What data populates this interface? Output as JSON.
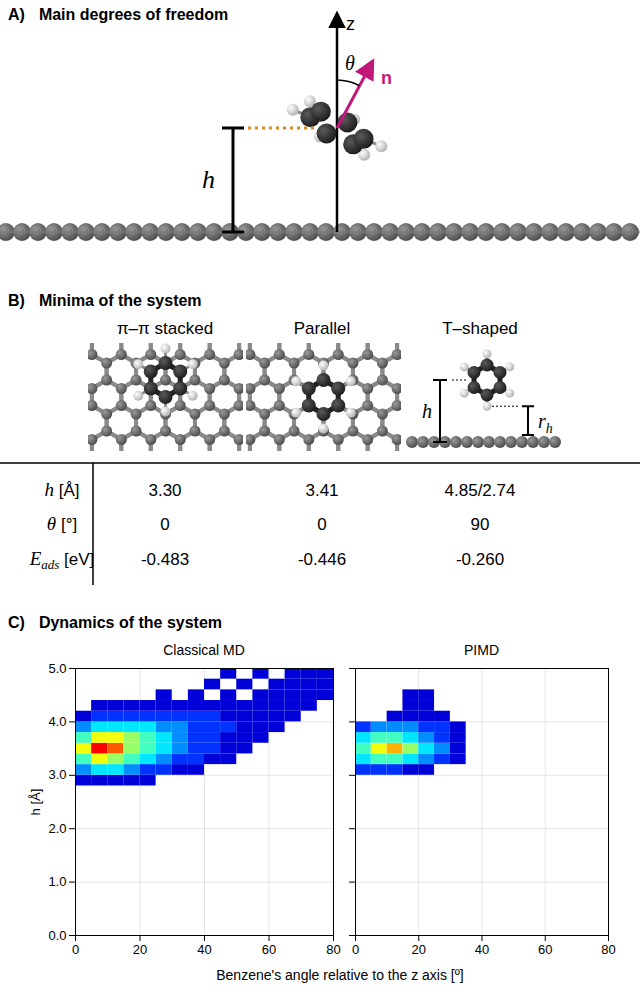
{
  "panels": {
    "A": {
      "letter": "A)",
      "title": "Main degrees of freedom",
      "labels": {
        "axis": "z",
        "angle": "θ",
        "normal": "n",
        "height": "h"
      }
    },
    "B": {
      "letter": "B)",
      "title": "Minima of the system",
      "columns": [
        "π–π stacked",
        "Parallel",
        "T–shaped"
      ],
      "diagram_labels": {
        "height": "h",
        "distance": "r",
        "distance_sub": "h"
      },
      "rows": [
        {
          "symbol": "h",
          "unit": "[Å]",
          "values": [
            "3.30",
            "3.41",
            "4.85/2.74"
          ]
        },
        {
          "symbol": "θ",
          "unit": "[°]",
          "values": [
            "0",
            "0",
            "90"
          ]
        },
        {
          "symbol": "E",
          "sub": "ads",
          "unit": "[eV]",
          "values": [
            "-0.483",
            "-0.446",
            "-0.260"
          ]
        }
      ]
    },
    "C": {
      "letter": "C)",
      "title": "Dynamics of the system",
      "xlabel": "Benzene's angle relative to the z axis [º]"
    }
  },
  "chart_data": [
    {
      "type": "heatmap",
      "title": "Classical MD",
      "ylabel": "h [Å]",
      "xlim": [
        0,
        80
      ],
      "xticks": [
        0,
        20,
        40,
        60,
        80
      ],
      "ylim": [
        0,
        5
      ],
      "yticks": [
        0,
        1,
        2,
        3,
        4,
        5
      ],
      "grid": true,
      "bin_size": [
        5,
        0.2
      ],
      "zlim": [
        0,
        10
      ],
      "cells": [
        [
          0,
          2.8,
          1
        ],
        [
          5,
          2.8,
          1
        ],
        [
          10,
          2.8,
          1
        ],
        [
          15,
          2.8,
          1
        ],
        [
          20,
          2.8,
          1
        ],
        [
          0,
          3.0,
          3
        ],
        [
          5,
          3.0,
          4
        ],
        [
          10,
          3.0,
          4
        ],
        [
          15,
          3.0,
          3
        ],
        [
          20,
          3.0,
          2
        ],
        [
          25,
          3.0,
          2
        ],
        [
          30,
          3.0,
          1
        ],
        [
          35,
          3.0,
          1
        ],
        [
          0,
          3.2,
          5
        ],
        [
          5,
          3.2,
          7
        ],
        [
          10,
          3.2,
          6
        ],
        [
          15,
          3.2,
          5
        ],
        [
          20,
          3.2,
          4
        ],
        [
          25,
          3.2,
          3
        ],
        [
          30,
          3.2,
          2
        ],
        [
          35,
          3.2,
          2
        ],
        [
          40,
          3.2,
          1
        ],
        [
          45,
          3.2,
          1
        ],
        [
          0,
          3.4,
          7
        ],
        [
          5,
          3.4,
          10
        ],
        [
          10,
          3.4,
          9
        ],
        [
          15,
          3.4,
          6
        ],
        [
          20,
          3.4,
          5
        ],
        [
          25,
          3.4,
          4
        ],
        [
          30,
          3.4,
          3
        ],
        [
          35,
          3.4,
          2
        ],
        [
          40,
          3.4,
          2
        ],
        [
          45,
          3.4,
          1
        ],
        [
          50,
          3.4,
          1
        ],
        [
          0,
          3.6,
          5
        ],
        [
          5,
          3.6,
          7
        ],
        [
          10,
          3.6,
          7
        ],
        [
          15,
          3.6,
          6
        ],
        [
          20,
          3.6,
          5
        ],
        [
          25,
          3.6,
          4
        ],
        [
          30,
          3.6,
          3
        ],
        [
          35,
          3.6,
          2
        ],
        [
          40,
          3.6,
          2
        ],
        [
          45,
          3.6,
          1
        ],
        [
          50,
          3.6,
          1
        ],
        [
          55,
          3.6,
          1
        ],
        [
          0,
          3.8,
          3
        ],
        [
          5,
          3.8,
          4
        ],
        [
          10,
          3.8,
          4
        ],
        [
          15,
          3.8,
          4
        ],
        [
          20,
          3.8,
          4
        ],
        [
          25,
          3.8,
          3
        ],
        [
          30,
          3.8,
          3
        ],
        [
          35,
          3.8,
          2
        ],
        [
          40,
          3.8,
          2
        ],
        [
          45,
          3.8,
          2
        ],
        [
          50,
          3.8,
          1
        ],
        [
          55,
          3.8,
          1
        ],
        [
          60,
          3.8,
          1
        ],
        [
          0,
          4.0,
          1
        ],
        [
          5,
          4.0,
          2
        ],
        [
          10,
          4.0,
          2
        ],
        [
          15,
          4.0,
          2
        ],
        [
          20,
          4.0,
          2
        ],
        [
          25,
          4.0,
          2
        ],
        [
          30,
          4.0,
          2
        ],
        [
          35,
          4.0,
          2
        ],
        [
          40,
          4.0,
          2
        ],
        [
          45,
          4.0,
          1
        ],
        [
          50,
          4.0,
          1
        ],
        [
          55,
          4.0,
          1
        ],
        [
          60,
          4.0,
          1
        ],
        [
          65,
          4.0,
          1
        ],
        [
          5,
          4.2,
          1
        ],
        [
          10,
          4.2,
          1
        ],
        [
          15,
          4.2,
          1
        ],
        [
          20,
          4.2,
          1
        ],
        [
          25,
          4.2,
          1
        ],
        [
          30,
          4.2,
          1
        ],
        [
          35,
          4.2,
          1
        ],
        [
          40,
          4.2,
          1
        ],
        [
          45,
          4.2,
          1
        ],
        [
          50,
          4.2,
          1
        ],
        [
          55,
          4.2,
          1
        ],
        [
          60,
          4.2,
          1
        ],
        [
          65,
          4.2,
          1
        ],
        [
          70,
          4.2,
          1
        ],
        [
          25,
          4.4,
          1
        ],
        [
          35,
          4.4,
          1
        ],
        [
          45,
          4.4,
          1
        ],
        [
          55,
          4.4,
          1
        ],
        [
          60,
          4.4,
          1
        ],
        [
          65,
          4.4,
          1
        ],
        [
          70,
          4.4,
          1
        ],
        [
          75,
          4.4,
          1
        ],
        [
          40,
          4.6,
          1
        ],
        [
          50,
          4.6,
          1
        ],
        [
          60,
          4.6,
          1
        ],
        [
          65,
          4.6,
          1
        ],
        [
          70,
          4.6,
          1
        ],
        [
          75,
          4.6,
          1
        ],
        [
          45,
          4.8,
          1
        ],
        [
          55,
          4.8,
          1
        ],
        [
          65,
          4.8,
          1
        ],
        [
          70,
          4.8,
          1
        ],
        [
          75,
          4.8,
          1
        ]
      ]
    },
    {
      "type": "heatmap",
      "title": "PIMD",
      "tick_labels": "x",
      "xlim": [
        0,
        80
      ],
      "xticks": [
        0,
        20,
        40,
        60,
        80
      ],
      "ylim": [
        0,
        5
      ],
      "yticks": [
        0,
        1,
        2,
        3,
        4,
        5
      ],
      "grid": true,
      "bin_size": [
        5,
        0.2
      ],
      "zlim": [
        0,
        10
      ],
      "cells": [
        [
          0,
          3.0,
          2
        ],
        [
          5,
          3.0,
          2
        ],
        [
          10,
          3.0,
          2
        ],
        [
          15,
          3.0,
          1
        ],
        [
          20,
          3.0,
          1
        ],
        [
          0,
          3.2,
          4
        ],
        [
          5,
          3.2,
          5
        ],
        [
          10,
          3.2,
          5
        ],
        [
          15,
          3.2,
          4
        ],
        [
          20,
          3.2,
          3
        ],
        [
          25,
          3.2,
          2
        ],
        [
          30,
          3.2,
          1
        ],
        [
          0,
          3.4,
          5
        ],
        [
          5,
          3.4,
          7
        ],
        [
          10,
          3.4,
          8
        ],
        [
          15,
          3.4,
          6
        ],
        [
          20,
          3.4,
          4
        ],
        [
          25,
          3.4,
          3
        ],
        [
          30,
          3.4,
          1
        ],
        [
          0,
          3.6,
          4
        ],
        [
          5,
          3.6,
          5
        ],
        [
          10,
          3.6,
          5
        ],
        [
          15,
          3.6,
          4
        ],
        [
          20,
          3.6,
          3
        ],
        [
          25,
          3.6,
          2
        ],
        [
          30,
          3.6,
          1
        ],
        [
          0,
          3.8,
          2
        ],
        [
          5,
          3.8,
          3
        ],
        [
          10,
          3.8,
          3
        ],
        [
          15,
          3.8,
          3
        ],
        [
          20,
          3.8,
          2
        ],
        [
          25,
          3.8,
          2
        ],
        [
          30,
          3.8,
          1
        ],
        [
          10,
          4.0,
          1
        ],
        [
          15,
          4.0,
          1
        ],
        [
          20,
          4.0,
          1
        ],
        [
          25,
          4.0,
          1
        ],
        [
          15,
          4.2,
          1
        ],
        [
          20,
          4.2,
          1
        ],
        [
          15,
          4.4,
          1
        ],
        [
          20,
          4.4,
          1
        ]
      ]
    }
  ]
}
